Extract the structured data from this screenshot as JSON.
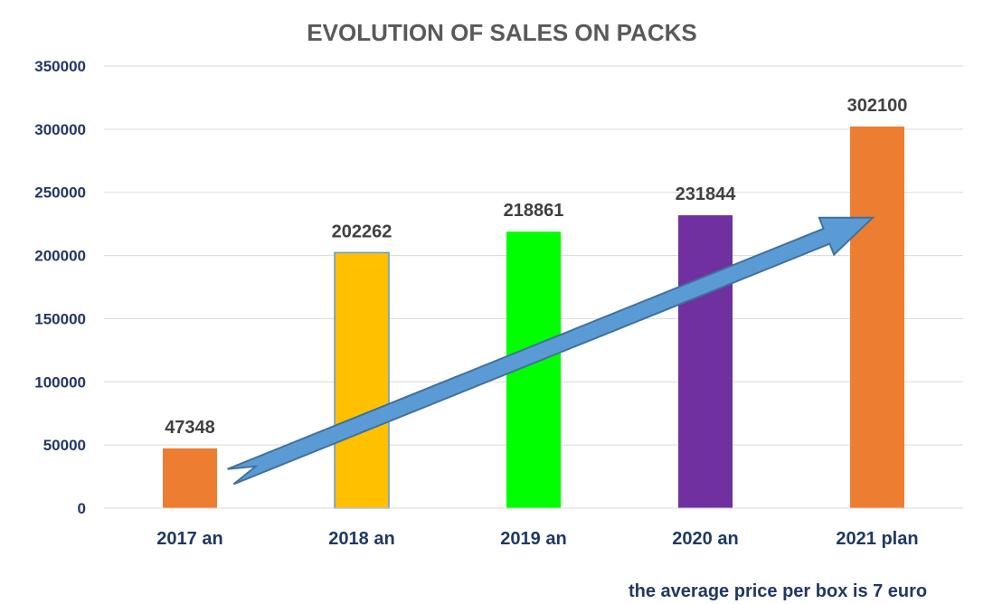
{
  "chart_data": {
    "type": "bar",
    "title": "EVOLUTION OF SALES ON PACKS",
    "categories": [
      "2017 an",
      "2018 an",
      "2019 an",
      "2020 an",
      "2021 plan"
    ],
    "values": [
      47348,
      202262,
      218861,
      231844,
      302100
    ],
    "data_labels": [
      "47348",
      "202262",
      "218861",
      "231844",
      "302100"
    ],
    "bar_colors": [
      "#ed7d31",
      "#ffc000",
      "#00ff00",
      "#7030a0",
      "#ed7d31"
    ],
    "ylim": [
      0,
      350000
    ],
    "yticks": [
      "0",
      "50000",
      "100000",
      "150000",
      "200000",
      "250000",
      "300000",
      "350000"
    ],
    "grid": true,
    "legend": "none",
    "annotation": {
      "type": "trend-arrow",
      "color": "#5b9bd5",
      "from": {
        "category": "2017 an",
        "value": 25000
      },
      "to": {
        "category": "2021 plan",
        "value": 230000
      }
    }
  },
  "footnote": "the average price per box is 7 euro"
}
